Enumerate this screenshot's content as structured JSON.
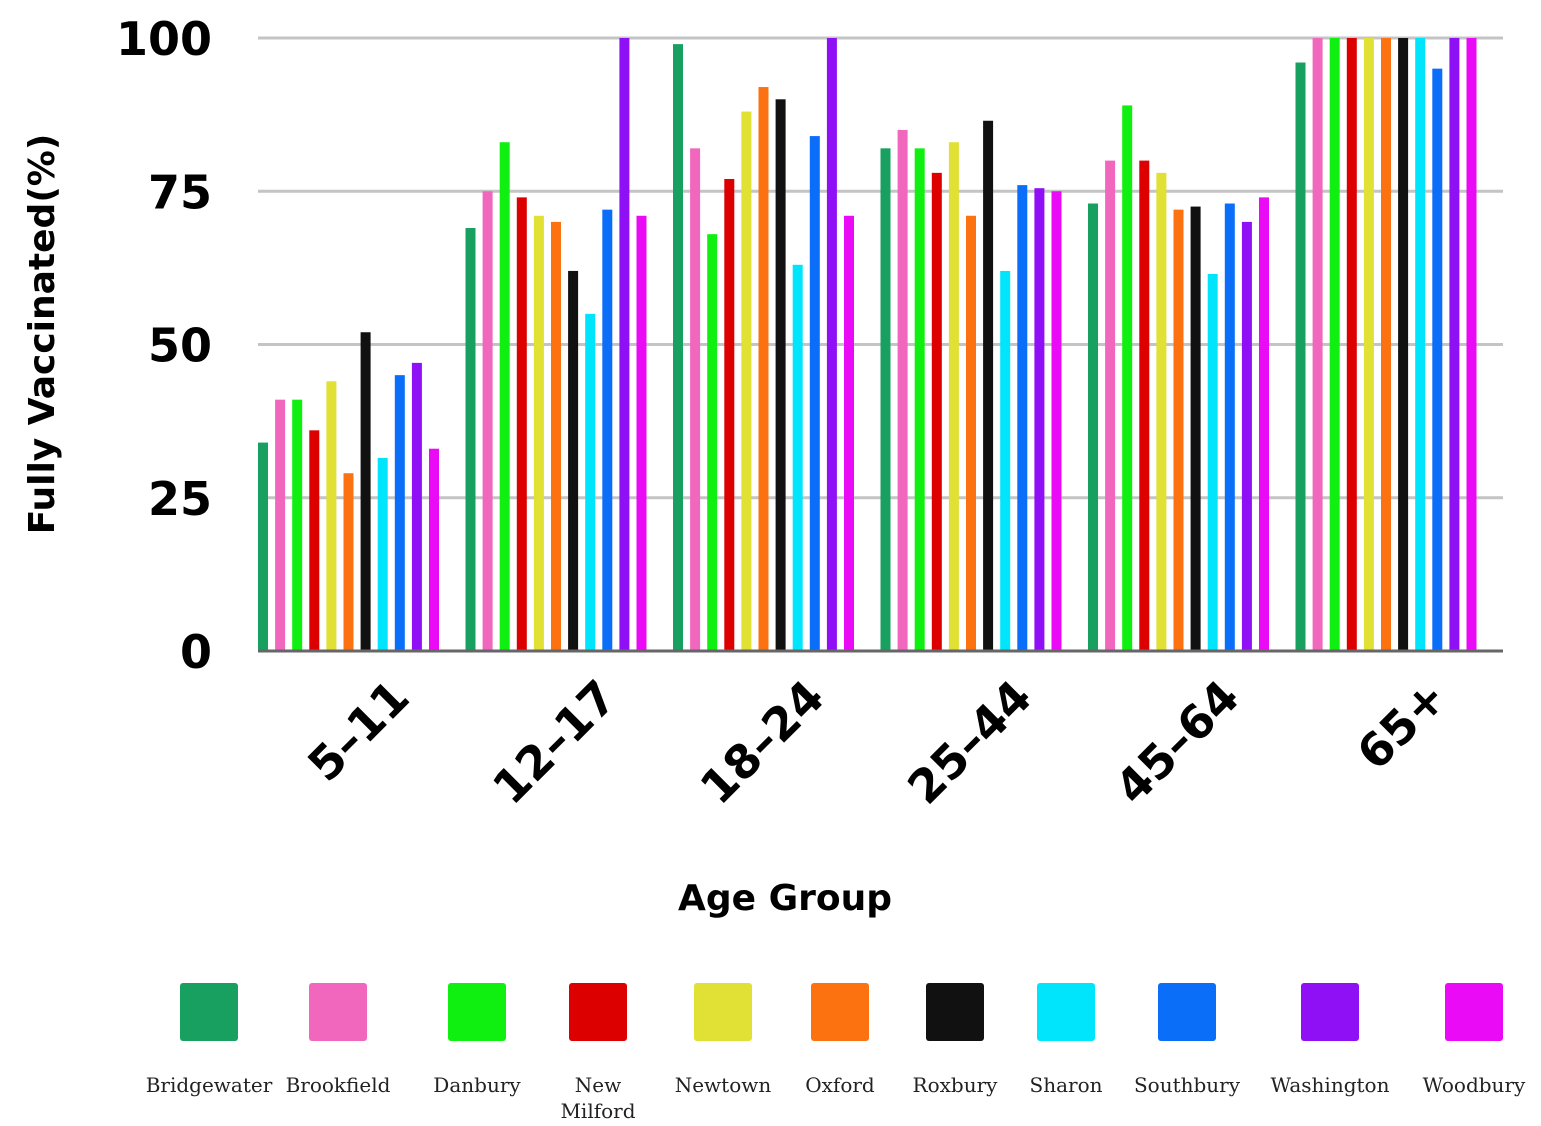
{
  "chart_data": {
    "type": "bar",
    "title": "",
    "xlabel": "Age Group",
    "ylabel": "Fully Vaccinated(%)",
    "ylim": [
      0,
      100
    ],
    "yticks": [
      0,
      25,
      50,
      75,
      100
    ],
    "grid": true,
    "legend_position": "bottom",
    "categories": [
      "5-11",
      "12-17",
      "18-24",
      "25-44",
      "45-64",
      "65+"
    ],
    "series": [
      {
        "name": "Bridgewater",
        "color": "#18a060",
        "values": [
          34,
          69,
          99,
          82,
          73,
          96
        ]
      },
      {
        "name": "Brookfield",
        "color": "#f067bd",
        "values": [
          41,
          75,
          82,
          85,
          80,
          100
        ]
      },
      {
        "name": "Danbury",
        "color": "#10f010",
        "values": [
          41,
          83,
          68,
          82,
          89,
          100
        ]
      },
      {
        "name": "New Milford",
        "color": "#dc0000",
        "values": [
          36,
          74,
          77,
          78,
          80,
          100
        ]
      },
      {
        "name": "Newtown",
        "color": "#e0e035",
        "values": [
          44,
          71,
          88,
          83,
          78,
          100
        ]
      },
      {
        "name": "Oxford",
        "color": "#fc7210",
        "values": [
          29,
          70,
          92,
          71,
          72,
          100
        ]
      },
      {
        "name": "Roxbury",
        "color": "#111111",
        "values": [
          52,
          62,
          90,
          86.5,
          72.5,
          100
        ]
      },
      {
        "name": "Sharon",
        "color": "#00e5fc",
        "values": [
          31.5,
          55,
          63,
          62,
          61.5,
          100
        ]
      },
      {
        "name": "Southbury",
        "color": "#0a6ef8",
        "values": [
          45,
          72,
          84,
          76,
          73,
          95
        ]
      },
      {
        "name": "Washington",
        "color": "#8f10f5",
        "values": [
          47,
          100,
          100,
          75.5,
          70,
          100
        ]
      },
      {
        "name": "Woodbury",
        "color": "#ea0af5",
        "values": [
          33,
          71,
          71,
          75,
          74,
          100
        ]
      }
    ]
  }
}
